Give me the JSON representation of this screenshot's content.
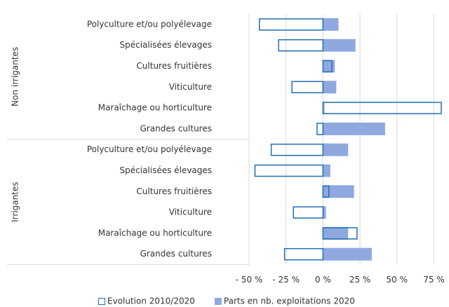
{
  "chart_data": {
    "type": "grouped-hbar",
    "groups": [
      {
        "name": "Non irrigantes",
        "categories": [
          "Polyculture et/ou polyélevage",
          "Spécialisées élevages",
          "Cultures fruitières",
          "Viticulture",
          "Maraîchage ou horticulture",
          "Grandes cultures"
        ]
      },
      {
        "name": "Irrigantes",
        "categories": [
          "Polyculture et/ou polyélevage",
          "Spécialisées élevages",
          "Cultures fruitières",
          "Viticulture",
          "Maraîchage ou horticulture",
          "Grandes cultures"
        ]
      }
    ],
    "series": [
      {
        "name": "Parts en nb. exploitations 2020",
        "color": "#8fa8e0",
        "style": "fill",
        "values": [
          [
            10.5,
            22,
            8,
            9,
            1,
            42
          ],
          [
            17,
            5,
            21,
            2,
            17,
            33
          ]
        ]
      },
      {
        "name": "Evolution 2010/2020",
        "color": "#1f6fb5",
        "style": "outline",
        "values": [
          [
            -43,
            -30,
            6,
            -21,
            80,
            -4
          ],
          [
            -35,
            -46,
            4,
            -20,
            23,
            -26
          ]
        ]
      }
    ],
    "xlim": [
      -50,
      80
    ],
    "xticks": [
      {
        "value": -50,
        "label": "- 50 %"
      },
      {
        "value": -25,
        "label": "- 25 %"
      },
      {
        "value": 0,
        "label": "0 %"
      },
      {
        "value": 25,
        "label": "25 %"
      },
      {
        "value": 50,
        "label": "50 %"
      },
      {
        "value": 75,
        "label": "75 %"
      }
    ],
    "grid": true,
    "legend": "bottom"
  }
}
